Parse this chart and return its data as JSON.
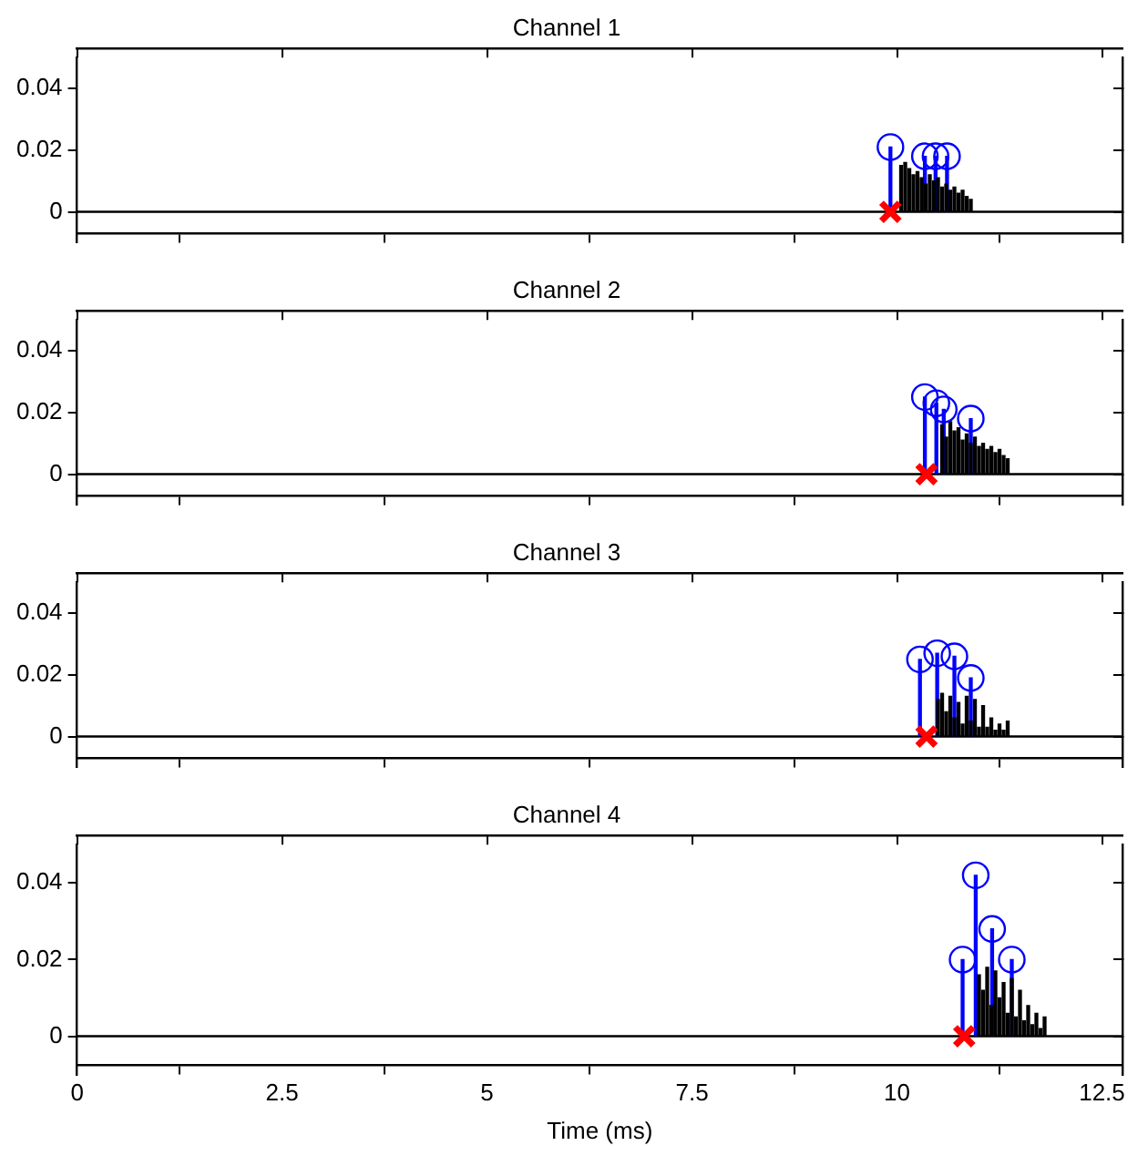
{
  "chart_data": [
    {
      "type": "lollipop",
      "title": "Channel 1",
      "xlim": [
        0,
        12.75
      ],
      "xticks": [
        0,
        2.5,
        5,
        7.5,
        10,
        12.5
      ],
      "ylim": [
        -0.01,
        0.05
      ],
      "yticks": [
        0,
        0.02,
        0.04
      ],
      "grid": false,
      "legend": false,
      "tick_labels": "y",
      "ref_lines": [
        {
          "axis": "y",
          "value": 0,
          "color": "#000000"
        }
      ],
      "series": [
        {
          "type": "bar",
          "color": "#000000",
          "x": [
            10.05,
            10.1,
            10.15,
            10.2,
            10.25,
            10.3,
            10.35,
            10.4,
            10.45,
            10.5,
            10.55,
            10.6,
            10.65,
            10.7,
            10.75,
            10.8,
            10.85,
            10.9
          ],
          "values": [
            0.015,
            0.016,
            0.014,
            0.012,
            0.013,
            0.011,
            0.009,
            0.012,
            0.01,
            0.011,
            0.008,
            0.009,
            0.007,
            0.008,
            0.006,
            0.007,
            0.005,
            0.004
          ]
        },
        {
          "marker": "circle",
          "color": "#0000ff",
          "x": [
            9.92,
            10.34,
            10.47,
            10.61
          ],
          "values": [
            0.021,
            0.018,
            0.018,
            0.018
          ]
        },
        {
          "type": "scatter",
          "marker": "cross",
          "color": "#ff0000",
          "x": [
            9.92
          ],
          "values": [
            0
          ]
        }
      ]
    },
    {
      "type": "lollipop",
      "title": "Channel 2",
      "xlim": [
        0,
        12.75
      ],
      "xticks": [
        0,
        2.5,
        5,
        7.5,
        10,
        12.5
      ],
      "ylim": [
        -0.01,
        0.05
      ],
      "yticks": [
        0,
        0.02,
        0.04
      ],
      "grid": false,
      "legend": false,
      "tick_labels": "y",
      "ref_lines": [
        {
          "axis": "y",
          "value": 0,
          "color": "#000000"
        }
      ],
      "series": [
        {
          "type": "bar",
          "color": "#000000",
          "x": [
            10.55,
            10.6,
            10.65,
            10.7,
            10.75,
            10.8,
            10.85,
            10.9,
            10.95,
            11.0,
            11.05,
            11.1,
            11.15,
            11.2,
            11.25,
            11.3,
            11.35
          ],
          "values": [
            0.016,
            0.012,
            0.017,
            0.014,
            0.015,
            0.011,
            0.013,
            0.01,
            0.012,
            0.009,
            0.01,
            0.008,
            0.009,
            0.007,
            0.008,
            0.006,
            0.005
          ]
        },
        {
          "marker": "circle",
          "color": "#0000ff",
          "x": [
            10.34,
            10.48,
            10.57,
            10.9
          ],
          "values": [
            0.025,
            0.023,
            0.021,
            0.018
          ]
        },
        {
          "type": "scatter",
          "marker": "cross",
          "color": "#ff0000",
          "x": [
            10.36
          ],
          "values": [
            0
          ]
        }
      ]
    },
    {
      "type": "lollipop",
      "title": "Channel 3",
      "xlim": [
        0,
        12.75
      ],
      "xticks": [
        0,
        2.5,
        5,
        7.5,
        10,
        12.5
      ],
      "ylim": [
        -0.01,
        0.05
      ],
      "yticks": [
        0,
        0.02,
        0.04
      ],
      "grid": false,
      "legend": false,
      "tick_labels": "y",
      "ref_lines": [
        {
          "axis": "y",
          "value": 0,
          "color": "#000000"
        }
      ],
      "series": [
        {
          "type": "bar",
          "color": "#000000",
          "x": [
            10.5,
            10.55,
            10.6,
            10.65,
            10.7,
            10.75,
            10.8,
            10.85,
            10.9,
            10.95,
            11.0,
            11.05,
            11.1,
            11.15,
            11.2,
            11.25,
            11.3,
            11.35
          ],
          "values": [
            0.012,
            0.014,
            0.008,
            0.013,
            0.006,
            0.011,
            0.004,
            0.013,
            0.005,
            0.012,
            0.003,
            0.01,
            0.003,
            0.006,
            0.002,
            0.004,
            0.002,
            0.005
          ]
        },
        {
          "marker": "circle",
          "color": "#0000ff",
          "x": [
            10.28,
            10.49,
            10.7,
            10.9
          ],
          "values": [
            0.025,
            0.027,
            0.026,
            0.019
          ]
        },
        {
          "type": "scatter",
          "marker": "cross",
          "color": "#ff0000",
          "x": [
            10.36
          ],
          "values": [
            0
          ]
        }
      ]
    },
    {
      "type": "lollipop",
      "title": "Channel 4",
      "xlabel": "Time (ms)",
      "xlim": [
        0,
        12.75
      ],
      "xticks": [
        0,
        2.5,
        5,
        7.5,
        10,
        12.5
      ],
      "ylim": [
        -0.01,
        0.05
      ],
      "yticks": [
        0,
        0.02,
        0.04
      ],
      "grid": false,
      "legend": false,
      "ref_lines": [
        {
          "axis": "y",
          "value": 0,
          "color": "#000000"
        }
      ],
      "series": [
        {
          "type": "bar",
          "color": "#000000",
          "x": [
            11.0,
            11.05,
            11.1,
            11.15,
            11.2,
            11.25,
            11.3,
            11.35,
            11.4,
            11.45,
            11.5,
            11.55,
            11.6,
            11.65,
            11.7,
            11.75,
            11.8
          ],
          "values": [
            0.016,
            0.012,
            0.018,
            0.008,
            0.017,
            0.01,
            0.014,
            0.006,
            0.015,
            0.005,
            0.012,
            0.004,
            0.008,
            0.003,
            0.006,
            0.002,
            0.005
          ]
        },
        {
          "marker": "circle",
          "color": "#0000ff",
          "x": [
            10.8,
            10.96,
            11.16,
            11.4
          ],
          "values": [
            0.02,
            0.042,
            0.028,
            0.02
          ]
        },
        {
          "type": "scatter",
          "marker": "cross",
          "color": "#ff0000",
          "x": [
            10.82
          ],
          "values": [
            0
          ]
        }
      ]
    }
  ]
}
